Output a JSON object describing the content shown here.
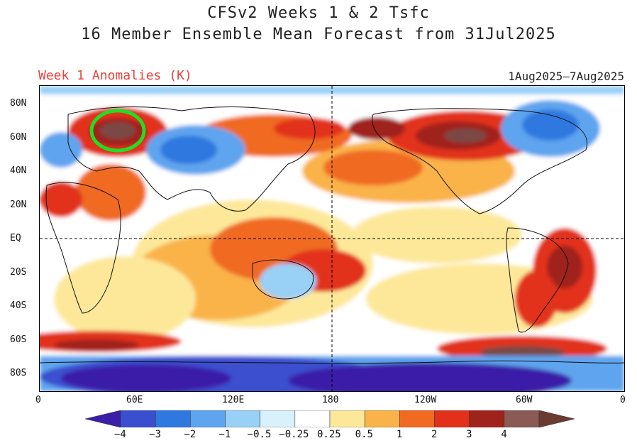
{
  "title_line1": "CFSv2 Weeks 1 & 2 Tsfc",
  "title_line2": "16 Member Ensemble Mean Forecast from 31Jul2025",
  "panel_label": "Week 1 Anomalies (K)",
  "date_range": "1Aug2025–7Aug2025",
  "lat_labels": [
    "80N",
    "60N",
    "40N",
    "20N",
    "EQ",
    "20S",
    "40S",
    "60S",
    "80S"
  ],
  "lon_labels": [
    "0",
    "60E",
    "120E",
    "180",
    "120W",
    "60W",
    "0"
  ],
  "colorbar": {
    "levels": [
      "−4",
      "−3",
      "−2",
      "−1",
      "−0.5",
      "−0.25",
      "0.25",
      "0.5",
      "1",
      "2",
      "3",
      "4"
    ],
    "colors": [
      "#3b1fa8",
      "#3a4fcf",
      "#2f78e0",
      "#5ea4ee",
      "#99d0f6",
      "#d8f1fb",
      "#ffffff",
      "#fde89a",
      "#f9b34a",
      "#f06a22",
      "#e2301a",
      "#a0231b",
      "#8a5a55",
      "#6b3b31"
    ]
  },
  "colors": {
    "ocean_neutral": "#ffffff",
    "warm_light": "#fde89a",
    "warm_mid": "#f9b34a",
    "warm_strong": "#f06a22",
    "hot": "#e2301a",
    "very_hot": "#a0231b",
    "extreme_hot": "#7a4a44",
    "cool_light": "#99d0f6",
    "cool_mid": "#5ea4ee",
    "cool_strong": "#2f78e0",
    "cold": "#3a4fcf",
    "very_cold": "#3b1fa8",
    "highlight_ring": "#22dd22"
  }
}
